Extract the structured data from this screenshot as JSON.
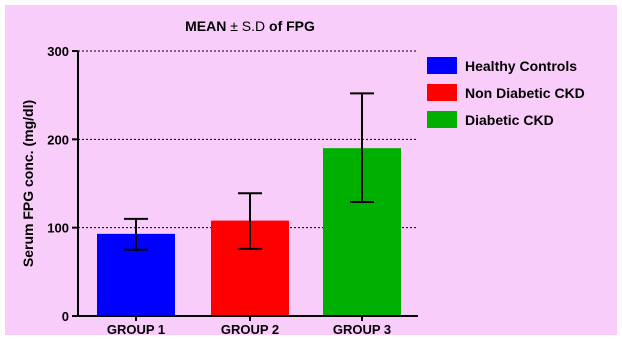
{
  "chart_data": {
    "type": "bar",
    "title": {
      "bold_part1": "MEAN",
      "normal_part": " ± S.D ",
      "bold_part2": "of FPG"
    },
    "ylabel": "Serum FPG conc. (mg/dl)",
    "xlabel": "",
    "ylim": [
      0,
      300
    ],
    "yticks": [
      0,
      100,
      200,
      300
    ],
    "grid": "dashed-horizontal",
    "legend_position": "right",
    "background_color": "#f9cdf9",
    "categories": [
      "GROUP 1",
      "GROUP 2",
      "GROUP 3"
    ],
    "series": [
      {
        "name": "Healthy Controls",
        "color": "#0000ff",
        "value": 93,
        "error_low": 75,
        "error_high": 110
      },
      {
        "name": "Non Diabetic CKD",
        "color": "#ff0000",
        "value": 108,
        "error_low": 76,
        "error_high": 139
      },
      {
        "name": "Diabetic CKD",
        "color": "#00b000",
        "value": 190,
        "error_low": 129,
        "error_high": 252
      }
    ]
  }
}
